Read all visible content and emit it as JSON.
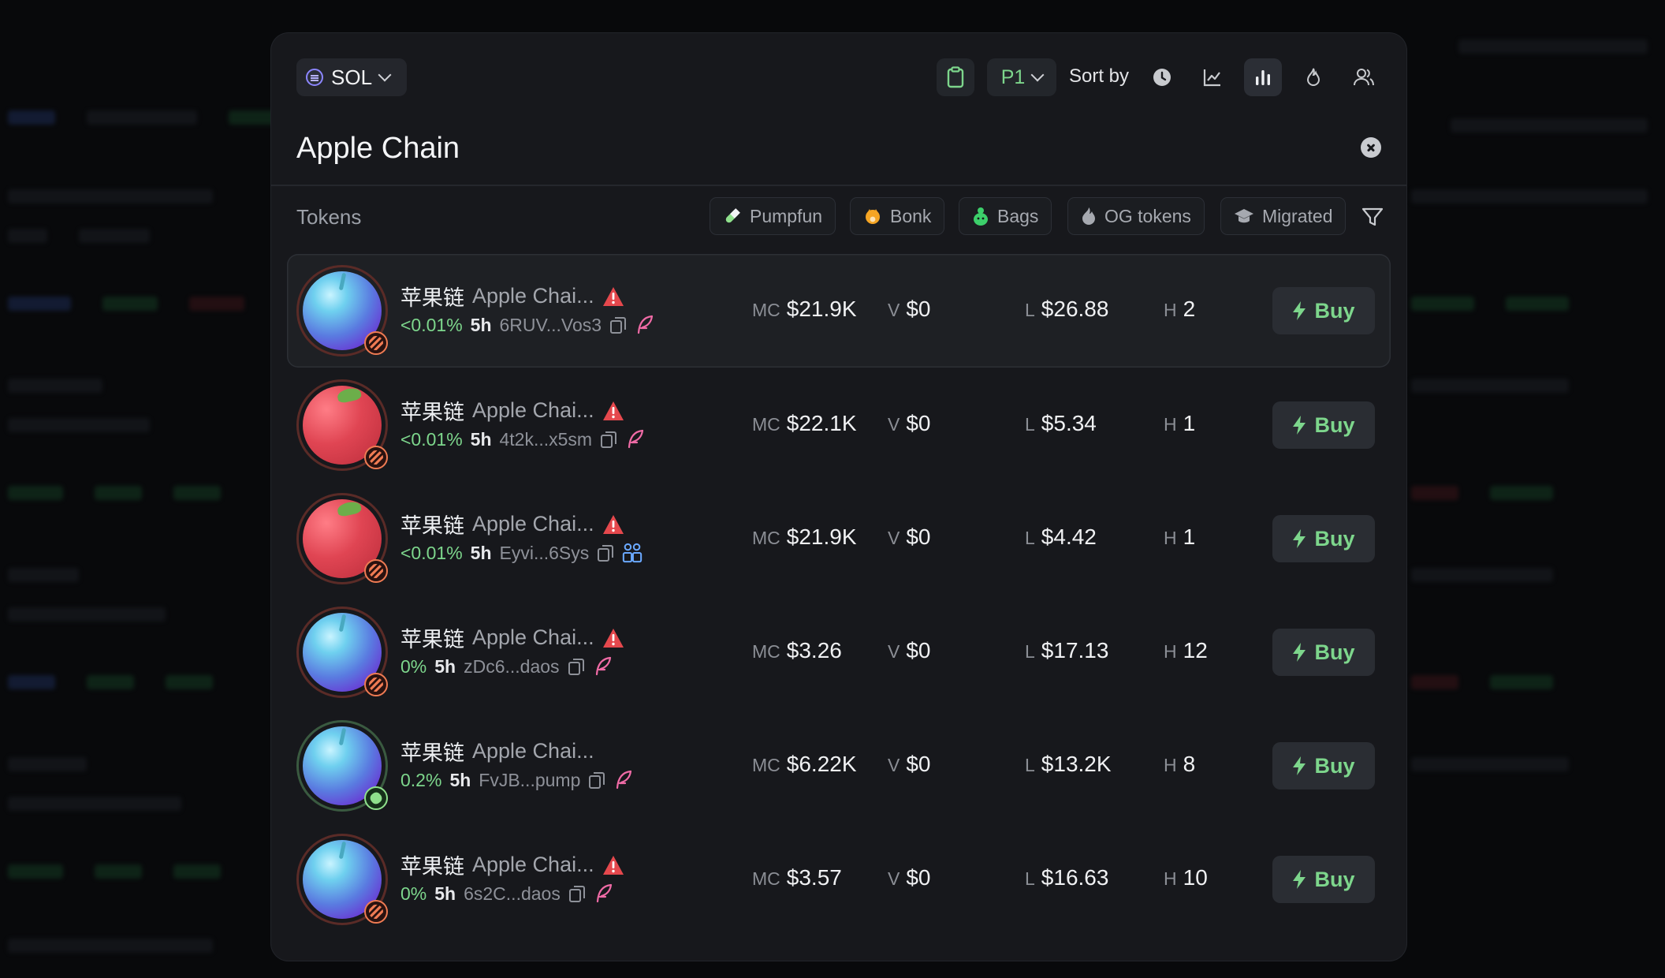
{
  "header": {
    "chain_label": "SOL",
    "preset_label": "P1",
    "sort_label": "Sort by",
    "sort_options": [
      "clock-icon",
      "line-chart-icon",
      "bar-chart-icon",
      "flame-icon",
      "users-icon"
    ],
    "active_sort": "bar-chart-icon"
  },
  "search": {
    "value": "Apple Chain"
  },
  "section": {
    "title": "Tokens"
  },
  "filters": [
    {
      "label": "Pumpfun",
      "icon": "pill-icon"
    },
    {
      "label": "Bonk",
      "icon": "bonk-icon"
    },
    {
      "label": "Bags",
      "icon": "bag-icon"
    },
    {
      "label": "OG tokens",
      "icon": "fire-icon"
    },
    {
      "label": "Migrated",
      "icon": "graduation-cap-icon"
    }
  ],
  "colors": {
    "accent_green": "#7dd68c",
    "warn_red": "#e5484d",
    "social_pink": "#f06ba6",
    "social_blue": "#6aa8ff"
  },
  "tokens": [
    {
      "cn_name": "苹果链",
      "name": "Apple Chai...",
      "pct": "<0.01%",
      "age": "5h",
      "address": "6RUV...Vos3",
      "mc_key": "MC",
      "mc": "$21.9K",
      "v_key": "V",
      "v": "$0",
      "l_key": "L",
      "l": "$26.88",
      "h_key": "H",
      "h": "2",
      "buy": "Buy"
    },
    {
      "cn_name": "苹果链",
      "name": "Apple Chai...",
      "pct": "<0.01%",
      "age": "5h",
      "address": "4t2k...x5sm",
      "mc_key": "MC",
      "mc": "$22.1K",
      "v_key": "V",
      "v": "$0",
      "l_key": "L",
      "l": "$5.34",
      "h_key": "H",
      "h": "1",
      "buy": "Buy"
    },
    {
      "cn_name": "苹果链",
      "name": "Apple Chai...",
      "pct": "<0.01%",
      "age": "5h",
      "address": "Eyvi...6Sys",
      "mc_key": "MC",
      "mc": "$21.9K",
      "v_key": "V",
      "v": "$0",
      "l_key": "L",
      "l": "$4.42",
      "h_key": "H",
      "h": "1",
      "buy": "Buy"
    },
    {
      "cn_name": "苹果链",
      "name": "Apple Chai...",
      "pct": "0%",
      "age": "5h",
      "address": "zDc6...daos",
      "mc_key": "MC",
      "mc": "$3.26",
      "v_key": "V",
      "v": "$0",
      "l_key": "L",
      "l": "$17.13",
      "h_key": "H",
      "h": "12",
      "buy": "Buy"
    },
    {
      "cn_name": "苹果链",
      "name": "Apple Chai...",
      "pct": "0.2%",
      "age": "5h",
      "address": "FvJB...pump",
      "mc_key": "MC",
      "mc": "$6.22K",
      "v_key": "V",
      "v": "$0",
      "l_key": "L",
      "l": "$13.2K",
      "h_key": "H",
      "h": "8",
      "buy": "Buy"
    },
    {
      "cn_name": "苹果链",
      "name": "Apple Chai...",
      "pct": "0%",
      "age": "5h",
      "address": "6s2C...daos",
      "mc_key": "MC",
      "mc": "$3.57",
      "v_key": "V",
      "v": "$0",
      "l_key": "L",
      "l": "$16.63",
      "h_key": "H",
      "h": "10",
      "buy": "Buy"
    }
  ]
}
